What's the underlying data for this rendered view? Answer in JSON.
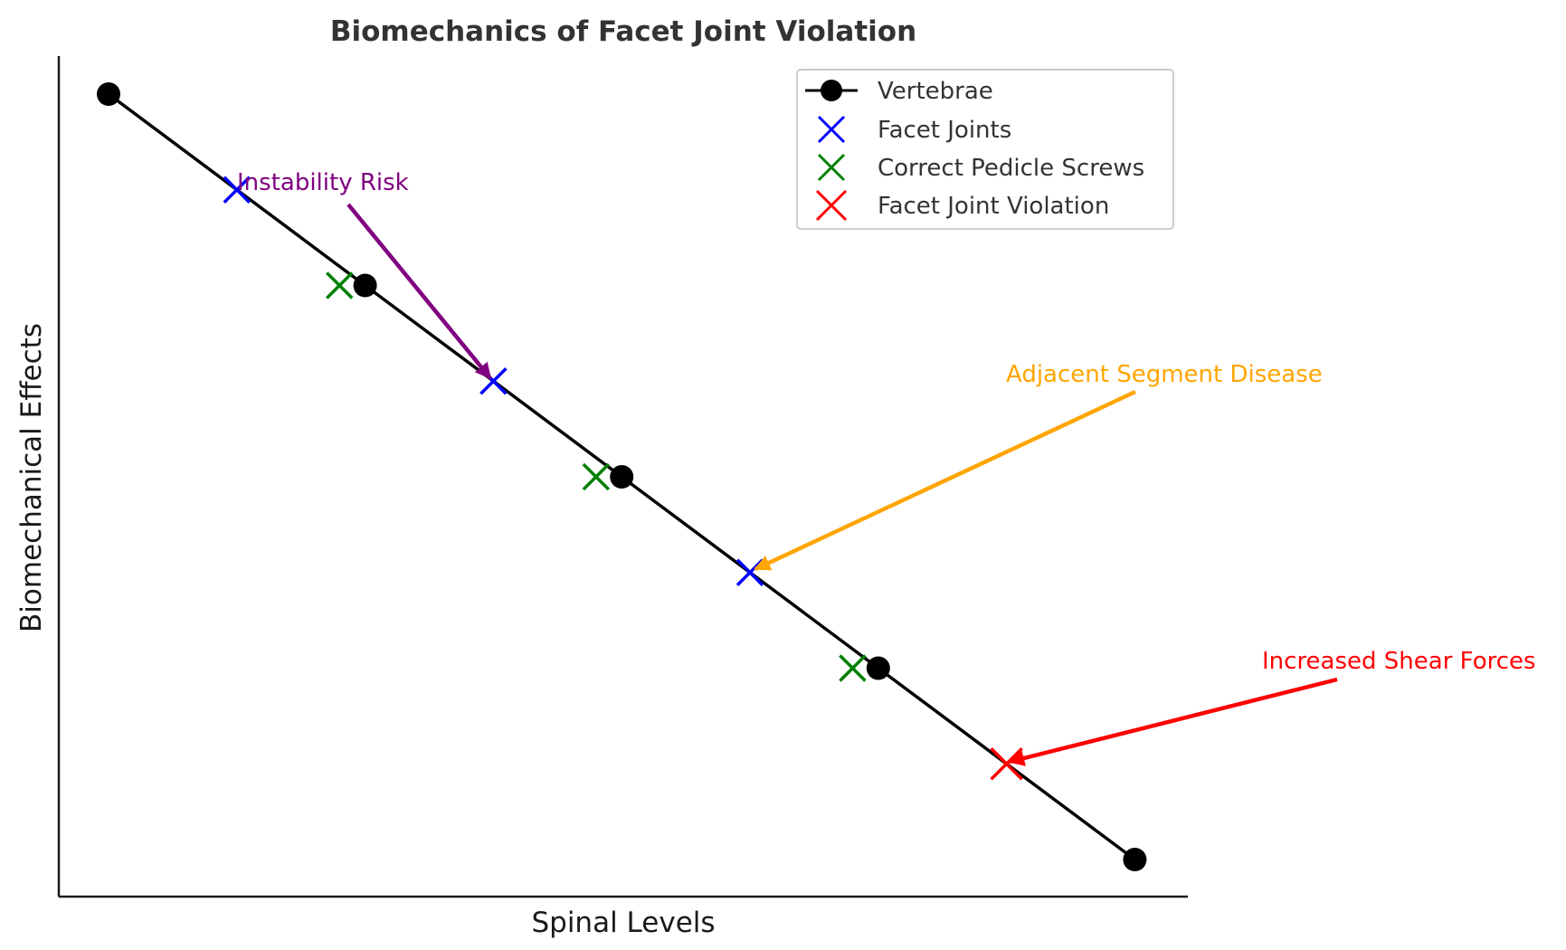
{
  "chart_data": {
    "type": "line",
    "title": "Biomechanics of Facet Joint Violation",
    "xlabel": "Spinal Levels",
    "ylabel": "Biomechanical Effects",
    "xlim": [
      0.75,
      5.15
    ],
    "ylim": [
      0.8,
      5.2
    ],
    "ticks_shown": false,
    "grid": false,
    "legend_position": "top-right",
    "series": [
      {
        "name": "Vertebrae",
        "kind": "line-marker",
        "color": "#000000",
        "points": [
          [
            1,
            5
          ],
          [
            2,
            4
          ],
          [
            3,
            3
          ],
          [
            4,
            2
          ],
          [
            5,
            1
          ]
        ]
      },
      {
        "name": "Facet Joints",
        "kind": "x-marker",
        "color": "#0000ff",
        "points": [
          [
            1.5,
            4.5
          ],
          [
            2.5,
            3.5
          ],
          [
            3.5,
            2.5
          ]
        ]
      },
      {
        "name": "Correct Pedicle Screws",
        "kind": "x-marker",
        "color": "#008000",
        "points": [
          [
            1.9,
            4
          ],
          [
            2.9,
            3
          ],
          [
            3.9,
            2
          ]
        ]
      },
      {
        "name": "Facet Joint Violation",
        "kind": "x-marker-large",
        "color": "#ff0000",
        "points": [
          [
            4.5,
            1.5
          ]
        ]
      }
    ],
    "annotations": [
      {
        "text": "Instability Risk",
        "color": "#800080",
        "text_xy": [
          1.5,
          4.5
        ],
        "arrow_to": [
          2.5,
          3.5
        ]
      },
      {
        "text": "Adjacent Segment Disease",
        "color": "#ffa500",
        "text_xy": [
          4.5,
          3.5
        ],
        "arrow_to": [
          3.5,
          2.5
        ]
      },
      {
        "text": "Increased Shear Forces",
        "color": "#ff0000",
        "text_xy": [
          5.5,
          2.0
        ],
        "arrow_to": [
          4.5,
          1.5
        ]
      }
    ]
  }
}
